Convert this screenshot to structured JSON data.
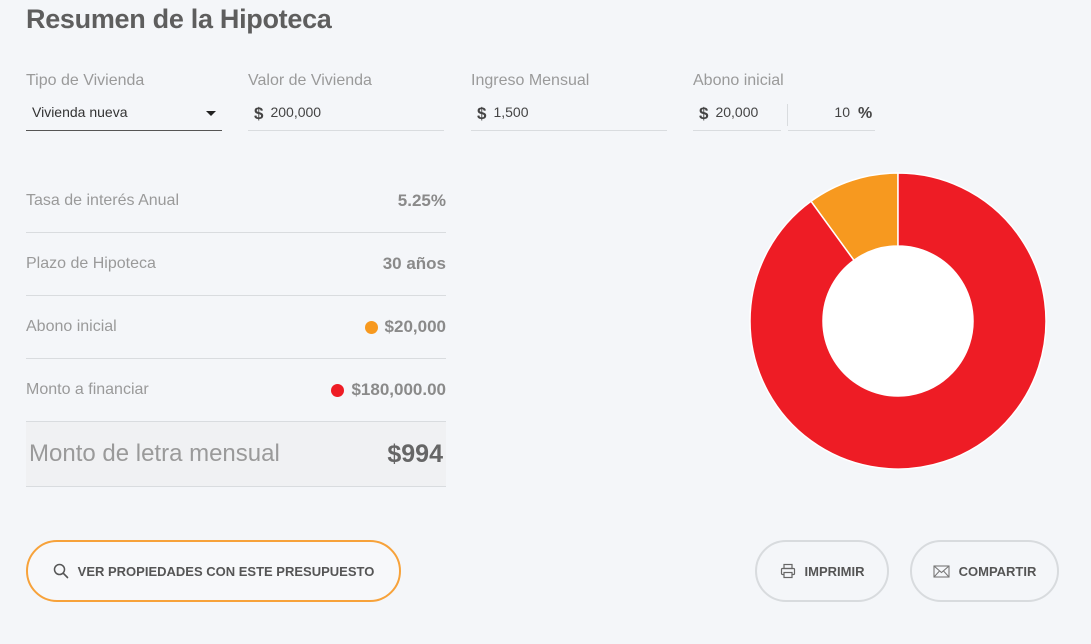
{
  "title": "Resumen de la Hipoteca",
  "fields": {
    "tipo": {
      "label": "Tipo de Vivienda",
      "value": "Vivienda nueva"
    },
    "valor": {
      "label": "Valor de Vivienda",
      "currency": "$",
      "value": "200,000"
    },
    "ingreso": {
      "label": "Ingreso Mensual",
      "currency": "$",
      "value": "1,500"
    },
    "abono": {
      "label": "Abono inicial",
      "currency": "$",
      "value": "20,000",
      "percent": "10",
      "percent_sign": "%"
    }
  },
  "summary": {
    "rows": [
      {
        "label": "Tasa de interés Anual",
        "value": "5.25%"
      },
      {
        "label": "Plazo de Hipoteca",
        "value": "30 años"
      },
      {
        "label": "Abono inicial",
        "value": "$20,000"
      },
      {
        "label": "Monto a financiar",
        "value": "$180,000.00"
      }
    ],
    "total": {
      "label": "Monto de letra mensual",
      "value": "$994"
    }
  },
  "buttons": {
    "ver": "VER PROPIEDADES CON ESTE PRESUPUESTO",
    "imprimir": "IMPRIMIR",
    "compartir": "COMPARTIR"
  },
  "icons": {
    "ver": "search-icon",
    "imprimir": "printer-icon",
    "compartir": "envelope-icon"
  },
  "colors": {
    "abono": "#f7991f",
    "financiar": "#ee1c25",
    "accent": "#f7a23a"
  },
  "chart_data": {
    "type": "pie",
    "series": [
      {
        "name": "Abono inicial",
        "value": 20000
      },
      {
        "name": "Monto a financiar",
        "value": 180000
      }
    ]
  }
}
